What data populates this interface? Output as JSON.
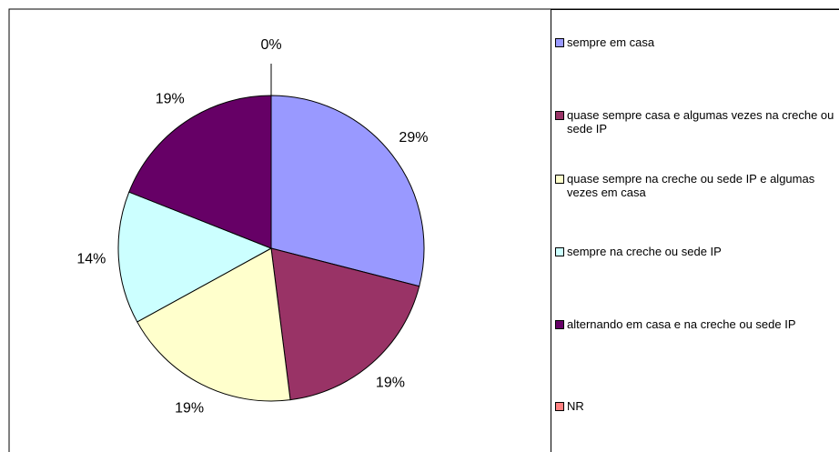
{
  "chart_data": {
    "type": "pie",
    "categories": [
      "sempre em casa",
      "quase sempre casa e algumas vezes na creche ou sede IP",
      "quase sempre na creche ou sede IP e algumas vezes em casa",
      "sempre na creche ou sede IP",
      "alternando em casa e na creche ou sede IP",
      "NR"
    ],
    "values": [
      29,
      19,
      19,
      14,
      19,
      0
    ],
    "value_labels": [
      "29%",
      "19%",
      "19%",
      "14%",
      "19%",
      "0%"
    ],
    "colors": [
      "#9999ff",
      "#993366",
      "#ffffcc",
      "#ccffff",
      "#660066",
      "#ff8080"
    ],
    "legend": "right"
  }
}
